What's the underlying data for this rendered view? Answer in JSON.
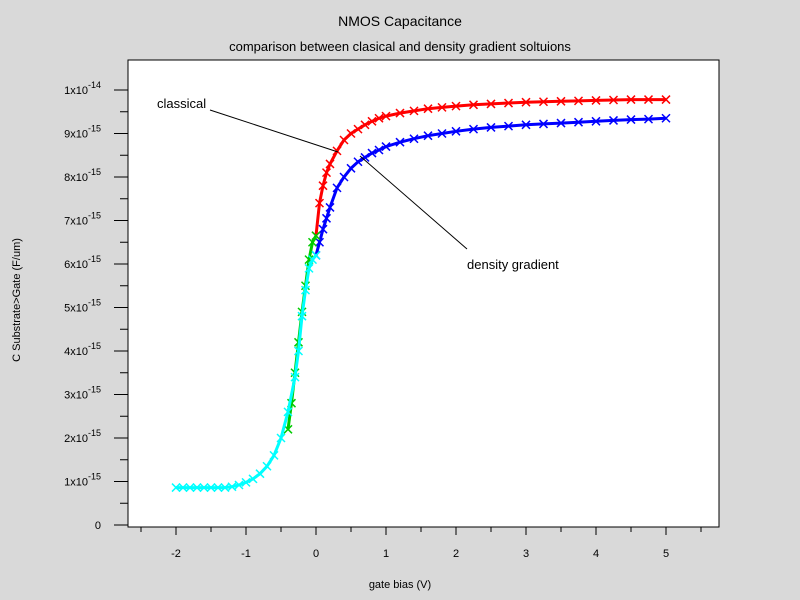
{
  "chart_data": {
    "type": "line",
    "title": "NMOS Capacitance",
    "subtitle": "comparison between clasical and density gradient soltuions",
    "xlabel": "gate bias (V)",
    "ylabel": "C Substrate>Gate (F/um)",
    "xlim": [
      -2.8,
      5.75
    ],
    "ylim": [
      0,
      1.1e-14
    ],
    "x_ticks": [
      {
        "value": -2,
        "label": "-2"
      },
      {
        "value": -1,
        "label": "-1"
      },
      {
        "value": 0,
        "label": "0"
      },
      {
        "value": 1,
        "label": "1"
      },
      {
        "value": 2,
        "label": "2"
      },
      {
        "value": 3,
        "label": "3"
      },
      {
        "value": 4,
        "label": "4"
      },
      {
        "value": 5,
        "label": "5"
      }
    ],
    "y_ticks": [
      {
        "value": 0,
        "mantissa": "0",
        "exponent": ""
      },
      {
        "value": 1e-15,
        "mantissa": "1x10",
        "exponent": "-15"
      },
      {
        "value": 2e-15,
        "mantissa": "2x10",
        "exponent": "-15"
      },
      {
        "value": 3e-15,
        "mantissa": "3x10",
        "exponent": "-15"
      },
      {
        "value": 4e-15,
        "mantissa": "4x10",
        "exponent": "-15"
      },
      {
        "value": 5e-15,
        "mantissa": "5x10",
        "exponent": "-15"
      },
      {
        "value": 6e-15,
        "mantissa": "6x10",
        "exponent": "-15"
      },
      {
        "value": 7e-15,
        "mantissa": "7x10",
        "exponent": "-15"
      },
      {
        "value": 8e-15,
        "mantissa": "8x10",
        "exponent": "-15"
      },
      {
        "value": 9e-15,
        "mantissa": "9x10",
        "exponent": "-15"
      },
      {
        "value": 1e-14,
        "mantissa": "1x10",
        "exponent": "-14"
      }
    ],
    "grid": false,
    "series": [
      {
        "color": "#ff0000",
        "marker": "x",
        "x": [
          0.0,
          0.05,
          0.1,
          0.15,
          0.2,
          0.3,
          0.4,
          0.5,
          0.6,
          0.7,
          0.8,
          0.9,
          1.0,
          1.2,
          1.4,
          1.6,
          1.8,
          2.0,
          2.25,
          2.5,
          2.75,
          3.0,
          3.25,
          3.5,
          3.75,
          4.0,
          4.25,
          4.5,
          4.75,
          5.0
        ],
        "y": [
          6.65e-15,
          7.4e-15,
          7.8e-15,
          8.1e-15,
          8.3e-15,
          8.6e-15,
          8.85e-15,
          9e-15,
          9.1e-15,
          9.2e-15,
          9.28e-15,
          9.35e-15,
          9.4e-15,
          9.47e-15,
          9.52e-15,
          9.57e-15,
          9.6e-15,
          9.63e-15,
          9.66e-15,
          9.68e-15,
          9.7e-15,
          9.72e-15,
          9.73e-15,
          9.74e-15,
          9.75e-15,
          9.76e-15,
          9.77e-15,
          9.78e-15,
          9.78e-15,
          9.78e-15
        ]
      },
      {
        "color": "#0000ff",
        "marker": "x",
        "x": [
          0.0,
          0.05,
          0.1,
          0.15,
          0.2,
          0.3,
          0.4,
          0.5,
          0.6,
          0.7,
          0.8,
          0.9,
          1.0,
          1.2,
          1.4,
          1.6,
          1.8,
          2.0,
          2.25,
          2.5,
          2.75,
          3.0,
          3.25,
          3.5,
          3.75,
          4.0,
          4.25,
          4.5,
          4.75,
          5.0
        ],
        "y": [
          6.2e-15,
          6.5e-15,
          6.8e-15,
          7.05e-15,
          7.3e-15,
          7.75e-15,
          8e-15,
          8.2e-15,
          8.35e-15,
          8.45e-15,
          8.55e-15,
          8.62e-15,
          8.7e-15,
          8.8e-15,
          8.88e-15,
          8.95e-15,
          9e-15,
          9.05e-15,
          9.1e-15,
          9.14e-15,
          9.17e-15,
          9.2e-15,
          9.22e-15,
          9.24e-15,
          9.26e-15,
          9.28e-15,
          9.3e-15,
          9.32e-15,
          9.33e-15,
          9.35e-15
        ]
      },
      {
        "color": "#00cc00",
        "marker": "x",
        "x": [
          -0.4,
          -0.35,
          -0.3,
          -0.25,
          -0.2,
          -0.15,
          -0.1,
          -0.05,
          0.0
        ],
        "y": [
          2.2e-15,
          2.8e-15,
          3.5e-15,
          4.2e-15,
          4.9e-15,
          5.5e-15,
          6.1e-15,
          6.5e-15,
          6.65e-15
        ]
      },
      {
        "color": "#00ffff",
        "marker": "x",
        "x": [
          -2.0,
          -1.9,
          -1.8,
          -1.7,
          -1.6,
          -1.5,
          -1.4,
          -1.3,
          -1.2,
          -1.1,
          -1.0,
          -0.9,
          -0.8,
          -0.7,
          -0.6,
          -0.5,
          -0.4,
          -0.3,
          -0.25,
          -0.2,
          -0.15,
          -0.1,
          -0.05,
          0.0
        ],
        "y": [
          8.6e-16,
          8.6e-16,
          8.6e-16,
          8.6e-16,
          8.6e-16,
          8.6e-16,
          8.6e-16,
          8.6e-16,
          8.8e-16,
          9.2e-16,
          9.8e-16,
          1.06e-15,
          1.18e-15,
          1.35e-15,
          1.6e-15,
          2e-15,
          2.6e-15,
          3.4e-15,
          4e-15,
          4.8e-15,
          5.4e-15,
          5.9e-15,
          6.1e-15,
          6.2e-15
        ]
      }
    ],
    "annotations": [
      {
        "text": "classical",
        "arrow_to": {
          "x": 0.3,
          "y": 8.6e-15
        }
      },
      {
        "text": "density gradient",
        "arrow_to": {
          "x": 0.55,
          "y": 8.5e-15
        }
      }
    ]
  }
}
